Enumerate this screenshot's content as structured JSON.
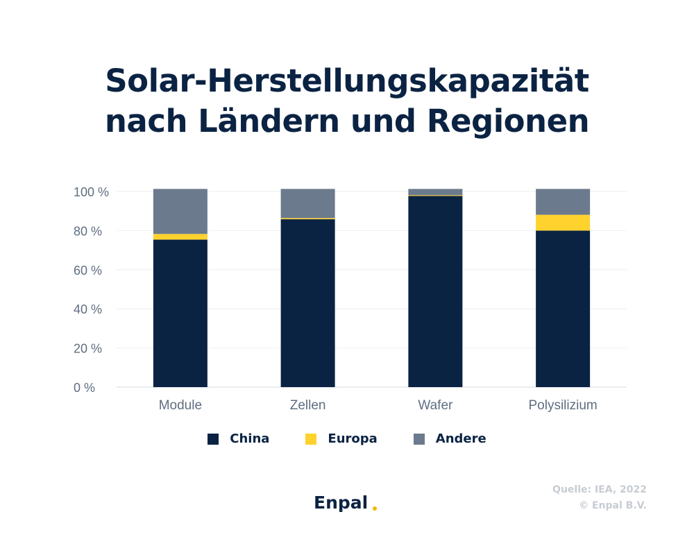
{
  "title_lines": [
    "Solar-Herstellungskapazität",
    "nach Ländern und Regionen"
  ],
  "chart_data": {
    "type": "bar",
    "stacked": true,
    "categories": [
      "Module",
      "Zellen",
      "Wafer",
      "Polysilizium"
    ],
    "series": [
      {
        "name": "China",
        "color": "#0b2343",
        "values": [
          75.4,
          85.8,
          97.7,
          80
        ]
      },
      {
        "name": "Europa",
        "color": "#ffd22e",
        "values": [
          2.9,
          0.6,
          0.4,
          8.1
        ]
      },
      {
        "name": "Andere",
        "color": "#6b7a8d",
        "values": [
          23,
          14.9,
          3.2,
          13.2
        ]
      }
    ],
    "ylim": [
      0,
      100
    ],
    "yticks": [
      0,
      20,
      40,
      60,
      80,
      100
    ],
    "ytick_labels": [
      "0 %",
      "20 %",
      "40 %",
      "60 %",
      "80 %",
      "100 %"
    ],
    "grid": true,
    "legend": "bottom"
  },
  "footer": {
    "logo": "Enpal",
    "source": "Quelle: IEA, 2022",
    "copyright": "© Enpal B.V."
  }
}
